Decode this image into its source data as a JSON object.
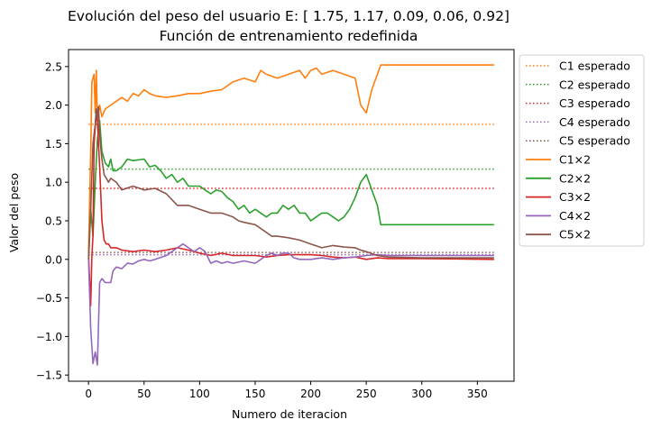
{
  "chart_data": {
    "type": "line",
    "title": "Evolución del peso del usuario E: [ 1.75, 1.17, 0.09, 0.06, 0.92]",
    "subtitle": "Función de entrenamiento redefinida",
    "xlabel": "Numero de iteracion",
    "ylabel": "Valor del peso",
    "xlim": [
      -18,
      383
    ],
    "ylim": [
      -1.58,
      2.72
    ],
    "xticks": [
      0,
      50,
      100,
      150,
      200,
      250,
      300,
      350
    ],
    "yticks": [
      -1.5,
      -1.0,
      -0.5,
      0.0,
      0.5,
      1.0,
      1.5,
      2.0,
      2.5
    ],
    "ytick_labels": [
      "−1.5",
      "−1.0",
      "−0.5",
      "0.0",
      "0.5",
      "1.0",
      "1.5",
      "2.0",
      "2.5"
    ],
    "legend_position": "outside-right",
    "grid": false,
    "expected": [
      {
        "name": "C1 esperado",
        "value": 1.75,
        "x_range": [
          0,
          365
        ],
        "color": "#ff7f0e"
      },
      {
        "name": "C2 esperado",
        "value": 1.17,
        "x_range": [
          0,
          365
        ],
        "color": "#2ca02c"
      },
      {
        "name": "C3 esperado",
        "value": 0.92,
        "x_range": [
          0,
          365
        ],
        "color": "#d62728"
      },
      {
        "name": "C4 esperado",
        "value": 0.06,
        "x_range": [
          0,
          365
        ],
        "color": "#9467bd"
      },
      {
        "name": "C5 esperado",
        "value": 0.09,
        "x_range": [
          0,
          365
        ],
        "color": "#8c564b"
      }
    ],
    "series": [
      {
        "name": "C1×2",
        "color": "#ff7f0e",
        "points": [
          [
            0,
            0.1
          ],
          [
            2,
            1.4
          ],
          [
            3,
            2.3
          ],
          [
            5,
            2.4
          ],
          [
            6,
            1.9
          ],
          [
            7,
            2.45
          ],
          [
            8,
            1.8
          ],
          [
            10,
            2.0
          ],
          [
            12,
            1.85
          ],
          [
            15,
            1.95
          ],
          [
            20,
            2.0
          ],
          [
            25,
            2.05
          ],
          [
            30,
            2.1
          ],
          [
            35,
            2.05
          ],
          [
            40,
            2.15
          ],
          [
            45,
            2.12
          ],
          [
            50,
            2.2
          ],
          [
            55,
            2.15
          ],
          [
            60,
            2.12
          ],
          [
            70,
            2.1
          ],
          [
            80,
            2.12
          ],
          [
            90,
            2.15
          ],
          [
            100,
            2.15
          ],
          [
            110,
            2.18
          ],
          [
            120,
            2.2
          ],
          [
            130,
            2.3
          ],
          [
            140,
            2.35
          ],
          [
            150,
            2.3
          ],
          [
            155,
            2.45
          ],
          [
            160,
            2.4
          ],
          [
            170,
            2.35
          ],
          [
            180,
            2.4
          ],
          [
            190,
            2.45
          ],
          [
            195,
            2.35
          ],
          [
            200,
            2.45
          ],
          [
            205,
            2.48
          ],
          [
            210,
            2.4
          ],
          [
            220,
            2.45
          ],
          [
            230,
            2.4
          ],
          [
            240,
            2.35
          ],
          [
            245,
            2.0
          ],
          [
            250,
            1.9
          ],
          [
            255,
            2.2
          ],
          [
            263,
            2.52
          ],
          [
            365,
            2.52
          ]
        ]
      },
      {
        "name": "C2×2",
        "color": "#2ca02c",
        "points": [
          [
            0,
            0.0
          ],
          [
            2,
            0.65
          ],
          [
            4,
            0.3
          ],
          [
            6,
            1.0
          ],
          [
            8,
            1.55
          ],
          [
            10,
            1.8
          ],
          [
            12,
            1.4
          ],
          [
            15,
            1.25
          ],
          [
            18,
            1.2
          ],
          [
            20,
            1.3
          ],
          [
            22,
            1.15
          ],
          [
            25,
            1.15
          ],
          [
            30,
            1.2
          ],
          [
            35,
            1.3
          ],
          [
            40,
            1.28
          ],
          [
            50,
            1.3
          ],
          [
            55,
            1.2
          ],
          [
            60,
            1.22
          ],
          [
            65,
            1.15
          ],
          [
            70,
            1.05
          ],
          [
            75,
            1.1
          ],
          [
            80,
            1.0
          ],
          [
            85,
            1.05
          ],
          [
            90,
            0.95
          ],
          [
            100,
            0.95
          ],
          [
            105,
            0.9
          ],
          [
            110,
            0.85
          ],
          [
            115,
            0.9
          ],
          [
            120,
            0.88
          ],
          [
            125,
            0.8
          ],
          [
            130,
            0.75
          ],
          [
            135,
            0.65
          ],
          [
            140,
            0.7
          ],
          [
            145,
            0.6
          ],
          [
            150,
            0.65
          ],
          [
            160,
            0.55
          ],
          [
            165,
            0.6
          ],
          [
            170,
            0.6
          ],
          [
            175,
            0.7
          ],
          [
            180,
            0.65
          ],
          [
            185,
            0.7
          ],
          [
            190,
            0.6
          ],
          [
            195,
            0.6
          ],
          [
            200,
            0.5
          ],
          [
            205,
            0.55
          ],
          [
            210,
            0.6
          ],
          [
            215,
            0.6
          ],
          [
            220,
            0.55
          ],
          [
            225,
            0.5
          ],
          [
            230,
            0.55
          ],
          [
            235,
            0.65
          ],
          [
            240,
            0.8
          ],
          [
            245,
            1.0
          ],
          [
            250,
            1.1
          ],
          [
            255,
            0.9
          ],
          [
            260,
            0.7
          ],
          [
            263,
            0.45
          ],
          [
            365,
            0.45
          ]
        ]
      },
      {
        "name": "C3×2",
        "color": "#d62728",
        "points": [
          [
            0,
            0.05
          ],
          [
            2,
            -0.6
          ],
          [
            3,
            0.05
          ],
          [
            4,
            0.3
          ],
          [
            5,
            1.5
          ],
          [
            7,
            1.9
          ],
          [
            8,
            1.8
          ],
          [
            10,
            1.2
          ],
          [
            12,
            0.5
          ],
          [
            14,
            0.25
          ],
          [
            16,
            0.2
          ],
          [
            18,
            0.2
          ],
          [
            20,
            0.15
          ],
          [
            25,
            0.15
          ],
          [
            30,
            0.12
          ],
          [
            40,
            0.1
          ],
          [
            50,
            0.12
          ],
          [
            60,
            0.1
          ],
          [
            70,
            0.12
          ],
          [
            80,
            0.15
          ],
          [
            90,
            0.12
          ],
          [
            100,
            0.08
          ],
          [
            110,
            0.05
          ],
          [
            120,
            0.08
          ],
          [
            130,
            0.05
          ],
          [
            140,
            0.05
          ],
          [
            150,
            0.05
          ],
          [
            160,
            0.03
          ],
          [
            170,
            0.05
          ],
          [
            180,
            0.06
          ],
          [
            200,
            0.06
          ],
          [
            210,
            0.05
          ],
          [
            220,
            0.03
          ],
          [
            230,
            0.02
          ],
          [
            240,
            0.03
          ],
          [
            250,
            0.0
          ],
          [
            260,
            0.02
          ],
          [
            270,
            0.01
          ],
          [
            300,
            0.01
          ],
          [
            365,
            0.0
          ]
        ]
      },
      {
        "name": "C4×2",
        "color": "#9467bd",
        "points": [
          [
            0,
            0.0
          ],
          [
            2,
            -0.9
          ],
          [
            4,
            -1.35
          ],
          [
            6,
            -1.2
          ],
          [
            8,
            -1.37
          ],
          [
            10,
            -0.3
          ],
          [
            12,
            -0.25
          ],
          [
            15,
            -0.3
          ],
          [
            20,
            -0.3
          ],
          [
            22,
            -0.15
          ],
          [
            25,
            -0.1
          ],
          [
            30,
            -0.12
          ],
          [
            35,
            -0.05
          ],
          [
            40,
            -0.06
          ],
          [
            45,
            -0.02
          ],
          [
            50,
            0.0
          ],
          [
            55,
            -0.02
          ],
          [
            60,
            0.0
          ],
          [
            70,
            0.05
          ],
          [
            75,
            0.1
          ],
          [
            80,
            0.15
          ],
          [
            85,
            0.2
          ],
          [
            90,
            0.15
          ],
          [
            95,
            0.1
          ],
          [
            100,
            0.15
          ],
          [
            105,
            0.1
          ],
          [
            110,
            -0.05
          ],
          [
            115,
            -0.02
          ],
          [
            120,
            -0.05
          ],
          [
            125,
            -0.03
          ],
          [
            130,
            -0.05
          ],
          [
            140,
            -0.02
          ],
          [
            150,
            -0.05
          ],
          [
            155,
            0.0
          ],
          [
            160,
            0.05
          ],
          [
            165,
            0.08
          ],
          [
            170,
            0.05
          ],
          [
            175,
            0.08
          ],
          [
            180,
            0.08
          ],
          [
            185,
            0.02
          ],
          [
            190,
            0.0
          ],
          [
            200,
            0.0
          ],
          [
            210,
            0.02
          ],
          [
            220,
            0.0
          ],
          [
            230,
            0.02
          ],
          [
            240,
            0.03
          ],
          [
            250,
            0.05
          ],
          [
            260,
            0.06
          ],
          [
            270,
            0.05
          ],
          [
            300,
            0.05
          ],
          [
            365,
            0.05
          ]
        ]
      },
      {
        "name": "C5×2",
        "color": "#8c564b",
        "points": [
          [
            0,
            0.0
          ],
          [
            2,
            0.65
          ],
          [
            4,
            1.5
          ],
          [
            6,
            1.75
          ],
          [
            7,
            1.95
          ],
          [
            8,
            1.85
          ],
          [
            9,
            1.98
          ],
          [
            10,
            1.6
          ],
          [
            12,
            1.3
          ],
          [
            14,
            1.1
          ],
          [
            16,
            1.05
          ],
          [
            18,
            1.0
          ],
          [
            20,
            1.05
          ],
          [
            25,
            1.0
          ],
          [
            30,
            0.9
          ],
          [
            40,
            0.95
          ],
          [
            50,
            0.9
          ],
          [
            60,
            0.92
          ],
          [
            70,
            0.85
          ],
          [
            80,
            0.7
          ],
          [
            90,
            0.7
          ],
          [
            100,
            0.65
          ],
          [
            110,
            0.6
          ],
          [
            120,
            0.6
          ],
          [
            130,
            0.55
          ],
          [
            135,
            0.5
          ],
          [
            140,
            0.48
          ],
          [
            150,
            0.45
          ],
          [
            160,
            0.35
          ],
          [
            165,
            0.3
          ],
          [
            170,
            0.3
          ],
          [
            180,
            0.28
          ],
          [
            190,
            0.25
          ],
          [
            200,
            0.2
          ],
          [
            210,
            0.15
          ],
          [
            220,
            0.18
          ],
          [
            230,
            0.16
          ],
          [
            240,
            0.15
          ],
          [
            245,
            0.12
          ],
          [
            250,
            0.1
          ],
          [
            260,
            0.05
          ],
          [
            270,
            0.03
          ],
          [
            300,
            0.02
          ],
          [
            365,
            0.02
          ]
        ]
      }
    ]
  }
}
